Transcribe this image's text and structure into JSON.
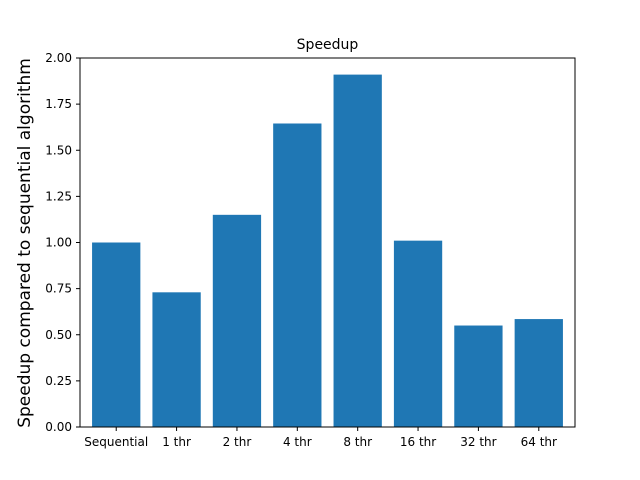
{
  "chart_data": {
    "type": "bar",
    "title": "Speedup",
    "xlabel": "",
    "ylabel": "Speedup compared to sequential algorithm",
    "categories": [
      "Sequential",
      "1 thr",
      "2 thr",
      "4 thr",
      "8 thr",
      "16 thr",
      "32 thr",
      "64 thr"
    ],
    "values": [
      1.0,
      0.73,
      1.15,
      1.645,
      1.91,
      1.01,
      0.55,
      0.585
    ],
    "ylim": [
      0,
      2.0
    ],
    "yticks": [
      "0.00",
      "0.25",
      "0.50",
      "0.75",
      "1.00",
      "1.25",
      "1.50",
      "1.75",
      "2.00"
    ],
    "bar_color": "#1f77b4",
    "grid": false,
    "legend": "none"
  }
}
